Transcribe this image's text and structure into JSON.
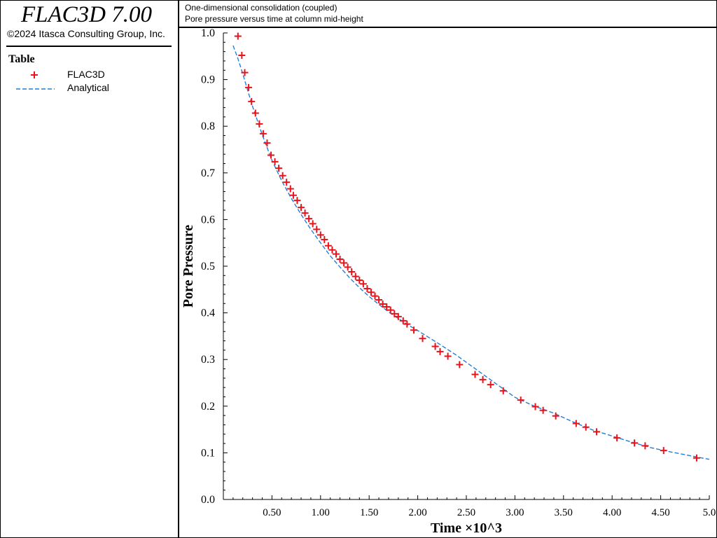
{
  "app": {
    "title": "FLAC3D 7.00",
    "copyright": "©2024 Itasca Consulting Group, Inc."
  },
  "legend": {
    "title": "Table",
    "items": [
      {
        "label": "FLAC3D",
        "symbol": "plus-marker",
        "color": "#e8141c"
      },
      {
        "label": "Analytical",
        "symbol": "dashed-line",
        "color": "#1f7fd9"
      }
    ]
  },
  "header": {
    "line1": "One-dimensional consolidation (coupled)",
    "line2": "Pore pressure versus time at column mid-height"
  },
  "chart_data": {
    "type": "line",
    "xlabel": "Time ×10^3",
    "ylabel": "Pore Pressure",
    "xlim": [
      0.0,
      5.0
    ],
    "ylim": [
      0.0,
      1.0
    ],
    "xticks": [
      "0.50",
      "1.00",
      "1.50",
      "2.00",
      "2.50",
      "3.00",
      "3.50",
      "4.00",
      "4.50",
      "5.0"
    ],
    "xtick_values": [
      0.5,
      1.0,
      1.5,
      2.0,
      2.5,
      3.0,
      3.5,
      4.0,
      4.5,
      5.0
    ],
    "yticks": [
      "0.0",
      "0.1",
      "0.2",
      "0.3",
      "0.4",
      "0.5",
      "0.6",
      "0.7",
      "0.8",
      "0.9",
      "1.0"
    ],
    "ytick_values": [
      0.0,
      0.1,
      0.2,
      0.3,
      0.4,
      0.5,
      0.6,
      0.7,
      0.8,
      0.9,
      1.0
    ],
    "grid": false,
    "series": [
      {
        "name": "FLAC3D",
        "style": "markers",
        "marker": "plus",
        "color": "#e8141c",
        "x": [
          0.15,
          0.19,
          0.22,
          0.26,
          0.29,
          0.33,
          0.37,
          0.41,
          0.45,
          0.49,
          0.53,
          0.57,
          0.61,
          0.65,
          0.69,
          0.72,
          0.76,
          0.8,
          0.84,
          0.88,
          0.92,
          0.96,
          1.0,
          1.04,
          1.08,
          1.12,
          1.16,
          1.2,
          1.24,
          1.28,
          1.32,
          1.36,
          1.4,
          1.44,
          1.48,
          1.52,
          1.56,
          1.6,
          1.64,
          1.68,
          1.72,
          1.76,
          1.8,
          1.85,
          1.89,
          1.96,
          2.05,
          2.18,
          2.23,
          2.31,
          2.43,
          2.59,
          2.67,
          2.75,
          2.88,
          3.06,
          3.21,
          3.29,
          3.42,
          3.63,
          3.73,
          3.84,
          4.05,
          4.23,
          4.34,
          4.53,
          4.87
        ],
        "y": [
          0.993,
          0.952,
          0.915,
          0.883,
          0.853,
          0.828,
          0.805,
          0.784,
          0.764,
          0.738,
          0.724,
          0.71,
          0.694,
          0.68,
          0.666,
          0.652,
          0.641,
          0.626,
          0.614,
          0.602,
          0.591,
          0.579,
          0.567,
          0.557,
          0.544,
          0.535,
          0.526,
          0.515,
          0.507,
          0.498,
          0.488,
          0.478,
          0.47,
          0.462,
          0.452,
          0.444,
          0.436,
          0.428,
          0.419,
          0.413,
          0.406,
          0.398,
          0.392,
          0.383,
          0.376,
          0.363,
          0.345,
          0.328,
          0.317,
          0.307,
          0.289,
          0.268,
          0.257,
          0.246,
          0.233,
          0.213,
          0.199,
          0.191,
          0.179,
          0.163,
          0.155,
          0.145,
          0.132,
          0.121,
          0.115,
          0.105,
          0.089
        ]
      },
      {
        "name": "Analytical",
        "style": "dashed-line",
        "color": "#1f7fd9",
        "x": [
          0.1,
          0.15,
          0.2,
          0.25,
          0.3,
          0.35,
          0.4,
          0.45,
          0.5,
          0.6,
          0.7,
          0.8,
          0.9,
          1.0,
          1.1,
          1.2,
          1.3,
          1.4,
          1.5,
          1.6,
          1.7,
          1.8,
          1.9,
          2.0,
          2.2,
          2.4,
          2.6,
          2.8,
          3.0,
          3.2,
          3.4,
          3.6,
          3.8,
          4.0,
          4.2,
          4.4,
          4.6,
          4.8,
          5.0
        ],
        "y": [
          0.973,
          0.945,
          0.912,
          0.877,
          0.843,
          0.812,
          0.782,
          0.754,
          0.727,
          0.683,
          0.645,
          0.611,
          0.579,
          0.55,
          0.522,
          0.498,
          0.475,
          0.454,
          0.435,
          0.418,
          0.402,
          0.388,
          0.374,
          0.362,
          0.336,
          0.309,
          0.279,
          0.249,
          0.219,
          0.2,
          0.185,
          0.166,
          0.149,
          0.136,
          0.123,
          0.111,
          0.102,
          0.094,
          0.086
        ]
      }
    ]
  }
}
